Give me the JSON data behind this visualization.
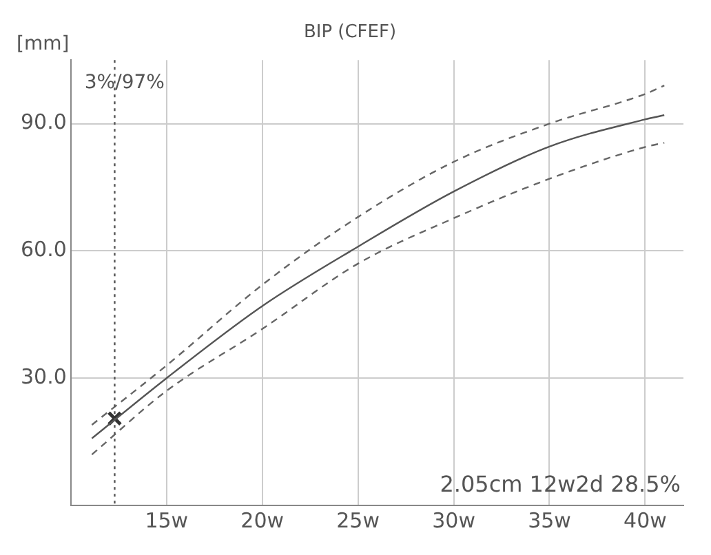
{
  "chart_data": {
    "type": "line",
    "title": "BIP (CFEF)",
    "ylabel": "[mm]",
    "annotations": [
      "3%/97%",
      "2.05cm 12w2d 28.5%"
    ],
    "xlim": [
      10,
      42
    ],
    "ylim": [
      0,
      105
    ],
    "xticks": [
      {
        "value": 15,
        "label": "15w"
      },
      {
        "value": 20,
        "label": "20w"
      },
      {
        "value": 25,
        "label": "25w"
      },
      {
        "value": 30,
        "label": "30w"
      },
      {
        "value": 35,
        "label": "35w"
      },
      {
        "value": 40,
        "label": "40w"
      }
    ],
    "yticks": [
      {
        "value": 30,
        "label": "30.0"
      },
      {
        "value": 60,
        "label": "60.0"
      },
      {
        "value": 90,
        "label": "90.0"
      }
    ],
    "grid": true,
    "marker": "none",
    "ref_lines": [
      {
        "axis": "x",
        "value": 12.29,
        "line_style": "dotted",
        "color": "#555555"
      }
    ],
    "series": [
      {
        "color": "#555555",
        "line_style": "solid",
        "x": [
          11.1,
          15,
          20,
          25,
          30,
          35,
          40,
          41
        ],
        "values": [
          15.8,
          30,
          47,
          61,
          74,
          84.6,
          91,
          92
        ]
      },
      {
        "color": "#666666",
        "line_style": "dashed",
        "x": [
          11.1,
          15,
          20,
          25,
          30,
          35,
          40,
          41
        ],
        "values": [
          19,
          33,
          52,
          68,
          81,
          90,
          97,
          99
        ]
      },
      {
        "color": "#666666",
        "line_style": "dashed",
        "x": [
          11.1,
          15,
          20,
          25,
          30,
          35,
          40,
          41
        ],
        "values": [
          12,
          27,
          41.6,
          57,
          67.7,
          77,
          84.5,
          85.5
        ]
      },
      {
        "type": "scatter",
        "marker": "cross",
        "color": "#333333",
        "x": [
          12.29
        ],
        "values": [
          20.5
        ]
      }
    ]
  }
}
